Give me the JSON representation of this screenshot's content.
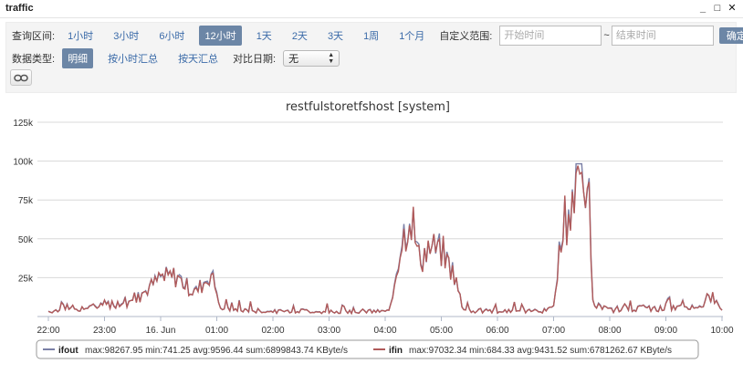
{
  "window": {
    "title": "traffic",
    "minimize": "_",
    "maximize": "□",
    "close": "✕"
  },
  "query": {
    "range_label": "查询区间:",
    "ranges": [
      {
        "label": "1小时",
        "active": false
      },
      {
        "label": "3小时",
        "active": false
      },
      {
        "label": "6小时",
        "active": false
      },
      {
        "label": "12小时",
        "active": true
      },
      {
        "label": "1天",
        "active": false
      },
      {
        "label": "2天",
        "active": false
      },
      {
        "label": "3天",
        "active": false
      },
      {
        "label": "1周",
        "active": false
      },
      {
        "label": "1个月",
        "active": false
      }
    ],
    "custom_label": "自定义范围:",
    "start_placeholder": "开始时间",
    "tilde": "~",
    "end_placeholder": "结束时间",
    "confirm_label": "确定",
    "datatype_label": "数据类型:",
    "datatypes": [
      {
        "label": "明细",
        "active": true
      },
      {
        "label": "按小时汇总",
        "active": false
      },
      {
        "label": "按天汇总",
        "active": false
      }
    ],
    "compare_label": "对比日期:",
    "compare_value": "无"
  },
  "chart_data": {
    "type": "line",
    "title": "restfulstoretfshost [system]",
    "yticks": [
      "125k",
      "100k",
      "75k",
      "50k",
      "25k"
    ],
    "ylim": [
      0,
      125000
    ],
    "xticks": [
      "22:00",
      "23:00",
      "16. Jun",
      "01:00",
      "02:00",
      "03:00",
      "04:00",
      "05:00",
      "06:00",
      "07:00",
      "08:00",
      "09:00",
      "10:00"
    ],
    "grid": true,
    "legend_position": "bottom-center",
    "series": [
      {
        "name": "ifout",
        "color": "#7a7fa6",
        "stats": "max:98267.95 min:741.25 avg:9596.44 sum:6899843.74 KByte/s",
        "segments": [
          [
            0,
            3500
          ],
          [
            0.8,
            6000
          ],
          [
            1.6,
            12000
          ],
          [
            2.0,
            25000
          ],
          [
            2.3,
            26000
          ],
          [
            2.6,
            15000
          ],
          [
            2.9,
            28000
          ],
          [
            3.1,
            5000
          ],
          [
            3.6,
            4000
          ],
          [
            4.0,
            3200
          ],
          [
            4.5,
            3800
          ],
          [
            5.0,
            3000
          ],
          [
            5.5,
            3500
          ],
          [
            6.0,
            3200
          ],
          [
            6.1,
            4000
          ],
          [
            6.2,
            32000
          ],
          [
            6.3,
            50000
          ],
          [
            6.45,
            68000
          ],
          [
            6.6,
            38000
          ],
          [
            6.8,
            44000
          ],
          [
            7.0,
            42000
          ],
          [
            7.2,
            30000
          ],
          [
            7.4,
            4000
          ],
          [
            8.0,
            3500
          ],
          [
            8.5,
            4000
          ],
          [
            8.9,
            3800
          ],
          [
            9.0,
            6000
          ],
          [
            9.1,
            40000
          ],
          [
            9.2,
            62000
          ],
          [
            9.3,
            70000
          ],
          [
            9.4,
            86000
          ],
          [
            9.45,
            98000
          ],
          [
            9.55,
            92000
          ],
          [
            9.65,
            70000
          ],
          [
            9.7,
            8000
          ],
          [
            10.0,
            4000
          ],
          [
            10.5,
            5500
          ],
          [
            11.0,
            5000
          ],
          [
            11.5,
            6500
          ],
          [
            11.8,
            12000
          ],
          [
            12.0,
            6000
          ]
        ]
      },
      {
        "name": "ifin",
        "color": "#b05a5a",
        "stats": "max:97032.34 min:684.33 avg:9431.52 sum:6781262.67 KByte/s"
      }
    ]
  }
}
